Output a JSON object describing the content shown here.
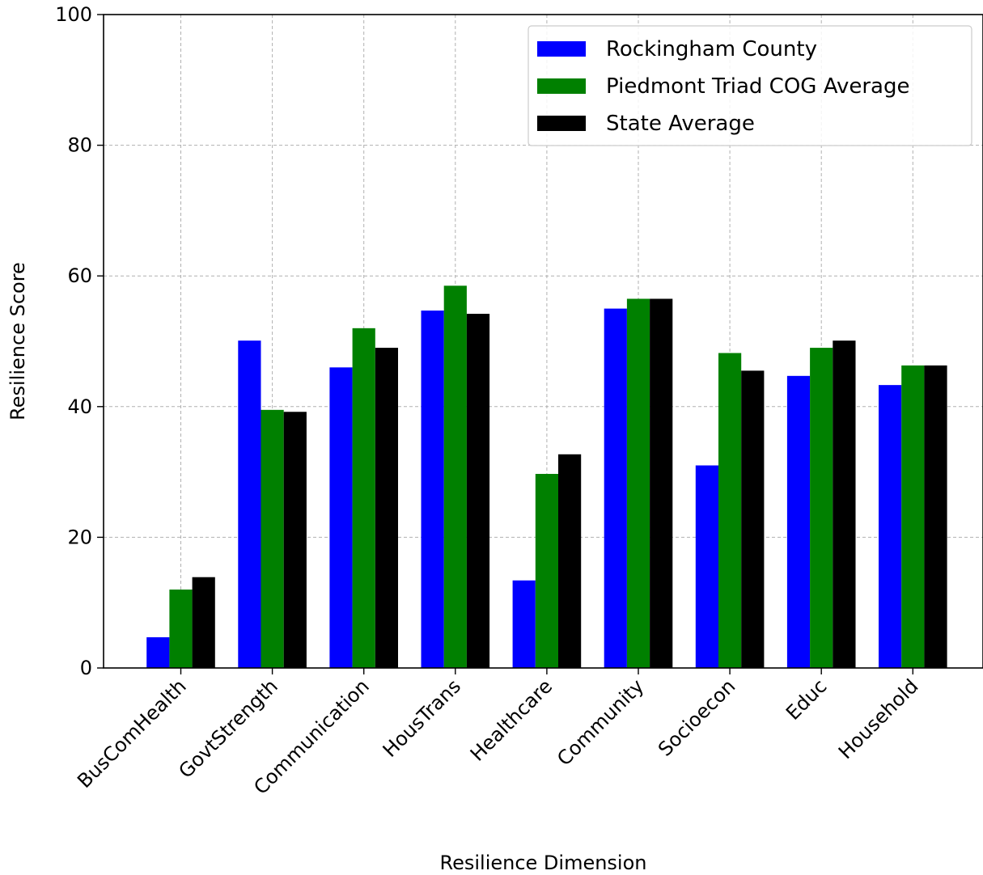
{
  "chart_data": {
    "type": "bar",
    "title": "",
    "xlabel": "Resilience Dimension",
    "ylabel": "Resilience Score",
    "ylim": [
      0,
      100
    ],
    "yticks": [
      0,
      20,
      40,
      60,
      80,
      100
    ],
    "grid": true,
    "legend_position": "top-right",
    "categories": [
      "BusComHealth",
      "GovtStrength",
      "Communication",
      "HousTrans",
      "Healthcare",
      "Community",
      "Socioecon",
      "Educ",
      "Household"
    ],
    "series": [
      {
        "name": "Rockingham County",
        "color": "#0000ff",
        "values": [
          4.7,
          50.1,
          46.0,
          54.7,
          13.4,
          55.0,
          31.0,
          44.7,
          43.3
        ]
      },
      {
        "name": "Piedmont Triad COG Average",
        "color": "#008000",
        "values": [
          12.0,
          39.5,
          52.0,
          58.5,
          29.7,
          56.5,
          48.2,
          49.0,
          46.3
        ]
      },
      {
        "name": "State Average",
        "color": "#000000",
        "values": [
          13.9,
          39.2,
          49.0,
          54.2,
          32.7,
          56.5,
          45.5,
          50.1,
          46.3
        ]
      }
    ]
  }
}
